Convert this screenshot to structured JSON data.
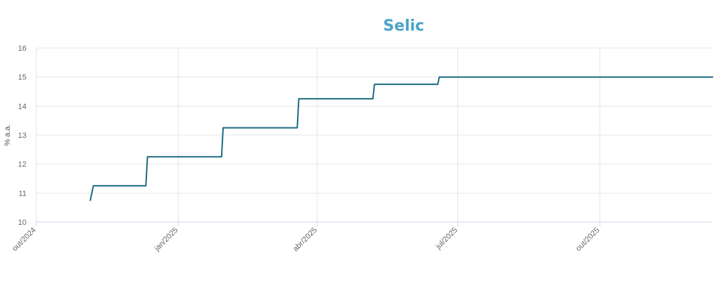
{
  "chart_data": {
    "type": "line",
    "title": "Selic",
    "xlabel": "",
    "ylabel": "% a.a.",
    "ylim": [
      10,
      16
    ],
    "xlim": [
      "2024-10-01",
      "2025-12-13"
    ],
    "yticks": [
      "10",
      "11",
      "12",
      "13",
      "14",
      "15",
      "16"
    ],
    "xticks": [
      {
        "date": "2024-10-01",
        "label": "out/2024"
      },
      {
        "date": "2025-01-01",
        "label": "jan/2025"
      },
      {
        "date": "2025-04-01",
        "label": "abr/2025"
      },
      {
        "date": "2025-07-01",
        "label": "jul/2025"
      },
      {
        "date": "2025-10-01",
        "label": "out/2025"
      }
    ],
    "grid": true,
    "series": [
      {
        "step": true,
        "points": [
          {
            "x": "2024-11-05",
            "y": 10.75
          },
          {
            "x": "2024-11-07",
            "y": 11.25
          },
          {
            "x": "2024-12-11",
            "y": 11.25
          },
          {
            "x": "2024-12-12",
            "y": 12.25
          },
          {
            "x": "2025-01-29",
            "y": 12.25
          },
          {
            "x": "2025-01-30",
            "y": 13.25
          },
          {
            "x": "2025-03-19",
            "y": 13.25
          },
          {
            "x": "2025-03-20",
            "y": 14.25
          },
          {
            "x": "2025-05-07",
            "y": 14.25
          },
          {
            "x": "2025-05-08",
            "y": 14.75
          },
          {
            "x": "2025-06-18",
            "y": 14.75
          },
          {
            "x": "2025-06-19",
            "y": 15.0
          },
          {
            "x": "2025-12-13",
            "y": 15.0
          }
        ]
      }
    ]
  },
  "colors": {
    "title": "#4aa3c8",
    "line": "#1b6a80",
    "grid": "#e6e6e6",
    "axis": "#ccd6eb"
  }
}
